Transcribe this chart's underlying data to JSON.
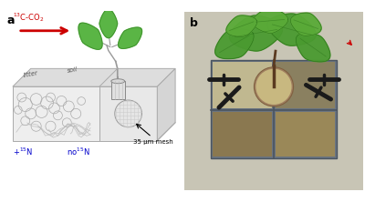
{
  "panel_a_label": "a",
  "panel_b_label": "b",
  "arrow_text": "$^{13}$C-CO$_2$",
  "arrow_color": "#cc0000",
  "label_litter": "litter",
  "label_soil": "soil",
  "label_plus15N": "+$^{15}$N",
  "label_no15N": "no$^{15}$N",
  "label_mesh": "35 μm mesh",
  "plus15N_color": "#0000cc",
  "no15N_color": "#0000cc",
  "background_color": "#ffffff",
  "fig_width": 4.0,
  "fig_height": 2.22,
  "dpi": 100,
  "leaf_color": "#5ab545",
  "sketch_color": "#888888",
  "box_edge": "#aaaaaa",
  "stem_color": "#999999"
}
